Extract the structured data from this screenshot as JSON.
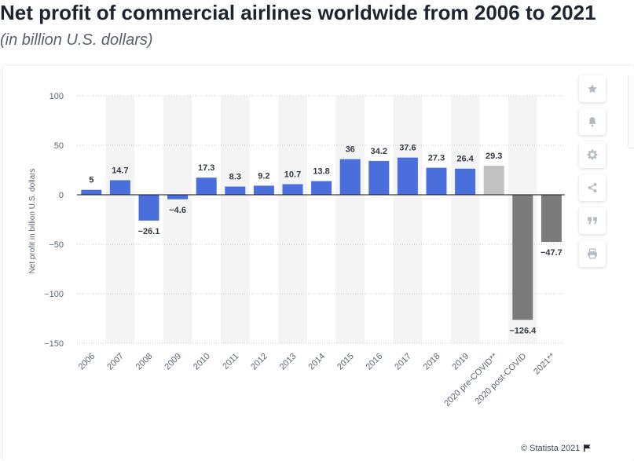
{
  "header": {
    "title": "Net profit of commercial airlines worldwide from 2006 to 2021",
    "subtitle": "(in billion U.S. dollars)"
  },
  "chart_data": {
    "type": "bar",
    "title": "Net profit of commercial airlines worldwide from 2006 to 2021",
    "ylabel": "Net profit in billion U.S. dollars",
    "xlabel": "",
    "ylim": [
      -150,
      100
    ],
    "yticks": [
      100,
      50,
      0,
      -50,
      -100,
      -150
    ],
    "ytick_labels": [
      "100",
      "50",
      "0",
      "−50",
      "−100",
      "−150"
    ],
    "categories": [
      "2006",
      "2007",
      "2008",
      "2009",
      "2010",
      "2011",
      "2012",
      "2013",
      "2014",
      "2015",
      "2016",
      "2017",
      "2018",
      "2019",
      "2020 pre-COVID**",
      "2020 post-COVID",
      "2021**"
    ],
    "values": [
      5,
      14.7,
      -26.1,
      -4.6,
      17.3,
      8.3,
      9.2,
      10.7,
      13.8,
      36,
      34.2,
      37.6,
      27.3,
      26.4,
      29.3,
      -126.4,
      -47.7
    ],
    "value_labels": [
      "5",
      "14.7",
      "−26.1",
      "−4.6",
      "17.3",
      "8.3",
      "9.2",
      "10.7",
      "13.8",
      "36",
      "34.2",
      "37.6",
      "27.3",
      "26.4",
      "29.3",
      "−126.4",
      "−47.7"
    ],
    "bar_colors": [
      "#4a6fdc",
      "#4a6fdc",
      "#4a6fdc",
      "#4a6fdc",
      "#4a6fdc",
      "#4a6fdc",
      "#4a6fdc",
      "#4a6fdc",
      "#4a6fdc",
      "#4a6fdc",
      "#4a6fdc",
      "#4a6fdc",
      "#4a6fdc",
      "#4a6fdc",
      "#c2c2c2",
      "#7b7b7b",
      "#7b7b7b"
    ],
    "grid": true,
    "legend": "none"
  },
  "toolbar": {
    "buttons": [
      {
        "name": "star-icon"
      },
      {
        "name": "bell-icon"
      },
      {
        "name": "gear-icon"
      },
      {
        "name": "share-icon"
      },
      {
        "name": "quote-icon"
      },
      {
        "name": "print-icon"
      }
    ]
  },
  "footer": {
    "credit": "© Statista 2021"
  }
}
